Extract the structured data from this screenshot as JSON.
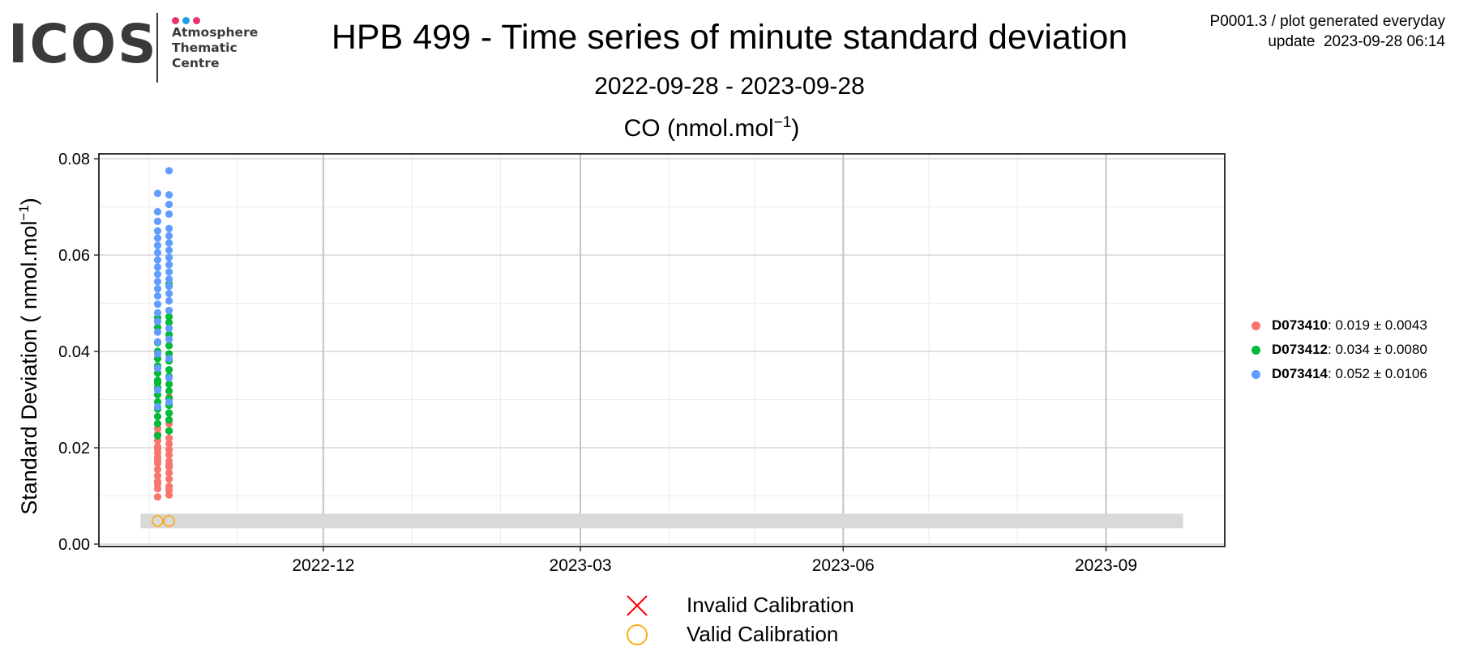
{
  "logo": {
    "text": "ICOS",
    "lines": [
      "Atmosphere",
      "Thematic",
      "Centre"
    ],
    "dot_colors": [
      "#e8336c",
      "#1e9fe0",
      "#e8336c"
    ]
  },
  "header": {
    "title": "HPB 499 - Time series of minute standard deviation",
    "subtitle": "2022-09-28 - 2023-09-28",
    "meta_line1": "P0001.3 / plot generated everyday",
    "meta_line2": "update  2023-09-28 06:14"
  },
  "colors": {
    "D073410": "#f8766d",
    "D073412": "#00ba38",
    "D073414": "#619cff",
    "valid_calibration": "#ffa500",
    "invalid_calibration": "#ff0000",
    "band": "#d9d9d9"
  },
  "chart_data": {
    "type": "scatter",
    "panel_title_main": "CO (nmol.mol",
    "panel_title_sup": "−1",
    "panel_title_end": ")",
    "ylabel_main": "Standard Deviation ( nmol.mol",
    "ylabel_sup": "−1",
    "ylabel_end": ")",
    "xlim": [
      "2022-09-28",
      "2023-09-28"
    ],
    "ylim": [
      0,
      0.08
    ],
    "x_ticks": [
      "2022-12",
      "2023-03",
      "2023-06",
      "2023-09"
    ],
    "y_ticks": [
      0.0,
      0.02,
      0.04,
      0.06,
      0.08
    ],
    "y_tick_labels": [
      "0.00",
      "0.02",
      "0.04",
      "0.06",
      "0.08"
    ],
    "grid": true,
    "legend_position": "right",
    "reference_band": {
      "ymin": 0.0033,
      "ymax": 0.0063,
      "xmin": "2022-09-28",
      "xmax": "2023-09-28"
    },
    "series": [
      {
        "name": "D073410",
        "label_value": "0.019",
        "label_sd": "0.0043",
        "points": [
          [
            "2022-10-04",
            0.0098
          ],
          [
            "2022-10-04",
            0.0115
          ],
          [
            "2022-10-04",
            0.013
          ],
          [
            "2022-10-04",
            0.0142
          ],
          [
            "2022-10-04",
            0.0155
          ],
          [
            "2022-10-04",
            0.0168
          ],
          [
            "2022-10-04",
            0.018
          ],
          [
            "2022-10-04",
            0.019
          ],
          [
            "2022-10-04",
            0.0202
          ],
          [
            "2022-10-04",
            0.0215
          ],
          [
            "2022-10-04",
            0.0228
          ],
          [
            "2022-10-04",
            0.024
          ],
          [
            "2022-10-04",
            0.0125
          ],
          [
            "2022-10-04",
            0.0175
          ],
          [
            "2022-10-04",
            0.0198
          ],
          [
            "2022-10-08",
            0.0102
          ],
          [
            "2022-10-08",
            0.012
          ],
          [
            "2022-10-08",
            0.0135
          ],
          [
            "2022-10-08",
            0.0148
          ],
          [
            "2022-10-08",
            0.016
          ],
          [
            "2022-10-08",
            0.0172
          ],
          [
            "2022-10-08",
            0.0185
          ],
          [
            "2022-10-08",
            0.0196
          ],
          [
            "2022-10-08",
            0.0208
          ],
          [
            "2022-10-08",
            0.022
          ],
          [
            "2022-10-08",
            0.0235
          ],
          [
            "2022-10-08",
            0.025
          ],
          [
            "2022-10-08",
            0.029
          ],
          [
            "2022-10-08",
            0.0305
          ],
          [
            "2022-10-08",
            0.0112
          ],
          [
            "2022-10-08",
            0.0165
          ]
        ]
      },
      {
        "name": "D073412",
        "label_value": "0.034",
        "label_sd": "0.0080",
        "points": [
          [
            "2022-10-04",
            0.0225
          ],
          [
            "2022-10-04",
            0.025
          ],
          [
            "2022-10-04",
            0.0265
          ],
          [
            "2022-10-04",
            0.028
          ],
          [
            "2022-10-04",
            0.0295
          ],
          [
            "2022-10-04",
            0.031
          ],
          [
            "2022-10-04",
            0.0325
          ],
          [
            "2022-10-04",
            0.034
          ],
          [
            "2022-10-04",
            0.0355
          ],
          [
            "2022-10-04",
            0.037
          ],
          [
            "2022-10-04",
            0.0385
          ],
          [
            "2022-10-04",
            0.04
          ],
          [
            "2022-10-04",
            0.0418
          ],
          [
            "2022-10-04",
            0.045
          ],
          [
            "2022-10-04",
            0.047
          ],
          [
            "2022-10-04",
            0.0335
          ],
          [
            "2022-10-08",
            0.0235
          ],
          [
            "2022-10-08",
            0.0258
          ],
          [
            "2022-10-08",
            0.0272
          ],
          [
            "2022-10-08",
            0.0288
          ],
          [
            "2022-10-08",
            0.0302
          ],
          [
            "2022-10-08",
            0.0318
          ],
          [
            "2022-10-08",
            0.0332
          ],
          [
            "2022-10-08",
            0.0348
          ],
          [
            "2022-10-08",
            0.0362
          ],
          [
            "2022-10-08",
            0.038
          ],
          [
            "2022-10-08",
            0.0395
          ],
          [
            "2022-10-08",
            0.0412
          ],
          [
            "2022-10-08",
            0.0435
          ],
          [
            "2022-10-08",
            0.046
          ],
          [
            "2022-10-08",
            0.0472
          ],
          [
            "2022-10-08",
            0.054
          ]
        ]
      },
      {
        "name": "D073414",
        "label_value": "0.052",
        "label_sd": "0.0106",
        "points": [
          [
            "2022-10-04",
            0.0285
          ],
          [
            "2022-10-04",
            0.032
          ],
          [
            "2022-10-04",
            0.0365
          ],
          [
            "2022-10-04",
            0.0395
          ],
          [
            "2022-10-04",
            0.042
          ],
          [
            "2022-10-04",
            0.044
          ],
          [
            "2022-10-04",
            0.0462
          ],
          [
            "2022-10-04",
            0.048
          ],
          [
            "2022-10-04",
            0.0498
          ],
          [
            "2022-10-04",
            0.0515
          ],
          [
            "2022-10-04",
            0.053
          ],
          [
            "2022-10-04",
            0.0545
          ],
          [
            "2022-10-04",
            0.056
          ],
          [
            "2022-10-04",
            0.0575
          ],
          [
            "2022-10-04",
            0.059
          ],
          [
            "2022-10-04",
            0.0605
          ],
          [
            "2022-10-04",
            0.062
          ],
          [
            "2022-10-04",
            0.0635
          ],
          [
            "2022-10-04",
            0.065
          ],
          [
            "2022-10-04",
            0.067
          ],
          [
            "2022-10-04",
            0.069
          ],
          [
            "2022-10-04",
            0.0728
          ],
          [
            "2022-10-08",
            0.0295
          ],
          [
            "2022-10-08",
            0.0345
          ],
          [
            "2022-10-08",
            0.0385
          ],
          [
            "2022-10-08",
            0.0425
          ],
          [
            "2022-10-08",
            0.0448
          ],
          [
            "2022-10-08",
            0.0485
          ],
          [
            "2022-10-08",
            0.0505
          ],
          [
            "2022-10-08",
            0.052
          ],
          [
            "2022-10-08",
            0.0535
          ],
          [
            "2022-10-08",
            0.055
          ],
          [
            "2022-10-08",
            0.0565
          ],
          [
            "2022-10-08",
            0.058
          ],
          [
            "2022-10-08",
            0.0595
          ],
          [
            "2022-10-08",
            0.061
          ],
          [
            "2022-10-08",
            0.0625
          ],
          [
            "2022-10-08",
            0.064
          ],
          [
            "2022-10-08",
            0.0655
          ],
          [
            "2022-10-08",
            0.0685
          ],
          [
            "2022-10-08",
            0.0705
          ],
          [
            "2022-10-08",
            0.0725
          ],
          [
            "2022-10-08",
            0.0775
          ]
        ]
      }
    ],
    "valid_calibration_points": [
      [
        "2022-10-04",
        0.0048
      ],
      [
        "2022-10-08",
        0.0048
      ]
    ],
    "invalid_calibration_points": []
  },
  "calibration_legend": {
    "invalid_label": "Invalid Calibration",
    "valid_label": "Valid Calibration"
  }
}
